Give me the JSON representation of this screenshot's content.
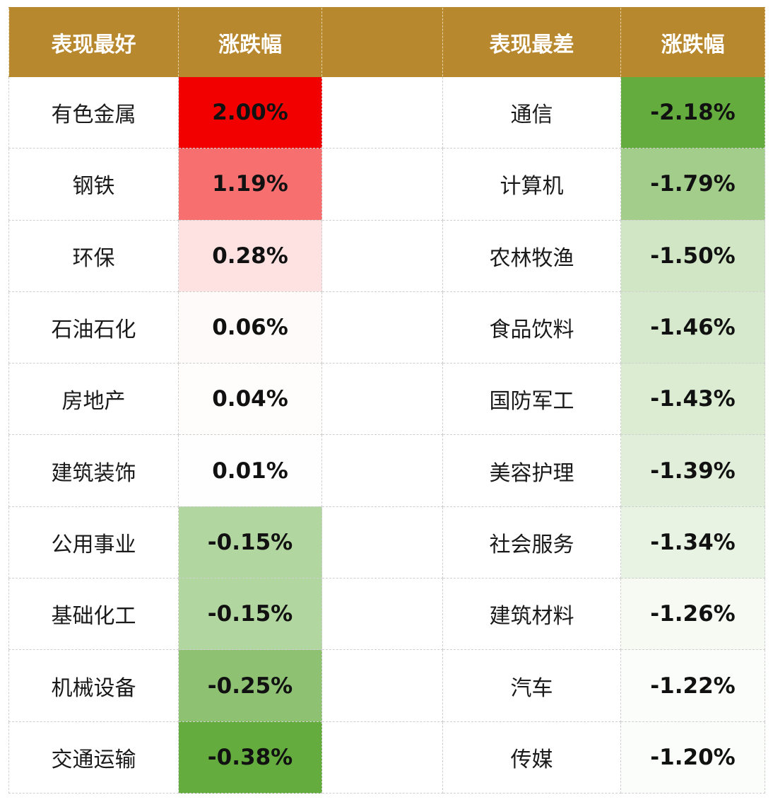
{
  "header": {
    "best_label": "表现最好",
    "best_change_label": "涨跌幅",
    "worst_label": "表现最差",
    "worst_change_label": "涨跌幅"
  },
  "colors": {
    "header_bg": "#b8882e",
    "positive_max": "#f20000",
    "negative_max": "#64ac3e",
    "neutral": "#ffffff"
  },
  "chart_data": {
    "type": "table",
    "columns": [
      "表现最好",
      "涨跌幅",
      "表现最差",
      "涨跌幅"
    ],
    "best": [
      {
        "name": "有色金属",
        "value": 2.0,
        "display": "2.00%"
      },
      {
        "name": "钢铁",
        "value": 1.19,
        "display": "1.19%"
      },
      {
        "name": "环保",
        "value": 0.28,
        "display": "0.28%"
      },
      {
        "name": "石油石化",
        "value": 0.06,
        "display": "0.06%"
      },
      {
        "name": "房地产",
        "value": 0.04,
        "display": "0.04%"
      },
      {
        "name": "建筑装饰",
        "value": 0.01,
        "display": "0.01%"
      },
      {
        "name": "公用事业",
        "value": -0.15,
        "display": "-0.15%"
      },
      {
        "name": "基础化工",
        "value": -0.15,
        "display": "-0.15%"
      },
      {
        "name": "机械设备",
        "value": -0.25,
        "display": "-0.25%"
      },
      {
        "name": "交通运输",
        "value": -0.38,
        "display": "-0.38%"
      }
    ],
    "worst": [
      {
        "name": "通信",
        "value": -2.18,
        "display": "-2.18%"
      },
      {
        "name": "计算机",
        "value": -1.79,
        "display": "-1.79%"
      },
      {
        "name": "农林牧渔",
        "value": -1.5,
        "display": "-1.50%"
      },
      {
        "name": "食品饮料",
        "value": -1.46,
        "display": "-1.46%"
      },
      {
        "name": "国防军工",
        "value": -1.43,
        "display": "-1.43%"
      },
      {
        "name": "美容护理",
        "value": -1.39,
        "display": "-1.39%"
      },
      {
        "name": "社会服务",
        "value": -1.34,
        "display": "-1.34%"
      },
      {
        "name": "建筑材料",
        "value": -1.26,
        "display": "-1.26%"
      },
      {
        "name": "汽车",
        "value": -1.22,
        "display": "-1.22%"
      },
      {
        "name": "传媒",
        "value": -1.2,
        "display": "-1.20%"
      }
    ]
  }
}
